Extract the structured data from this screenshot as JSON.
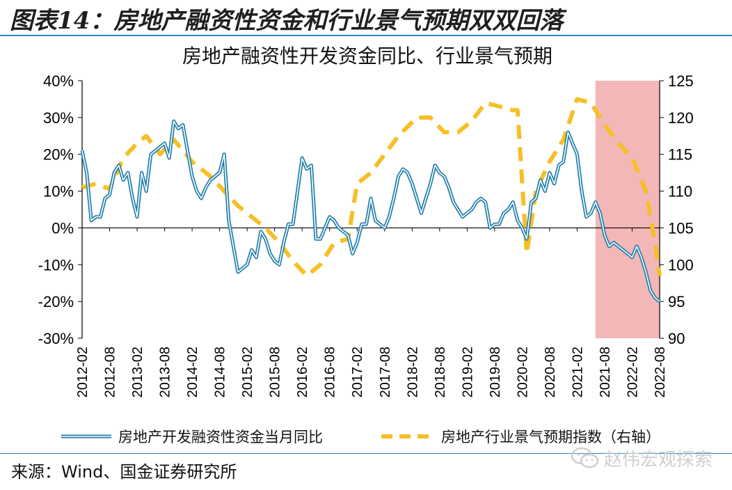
{
  "header": {
    "title": "图表14：房地产融资性资金和行业景气预期双双回落"
  },
  "footer": {
    "source": "来源：Wind、国金证券研究所",
    "watermark": "赵伟宏观探索"
  },
  "colors": {
    "financing_line": "#1f7ea8",
    "financing_line_inner": "#ffffff",
    "expectation_line": "#f6bf26",
    "highlight": "#f4b7b7",
    "axis": "#000000"
  },
  "chart_data": {
    "type": "line",
    "title": "房地产融资性开发资金同比、行业景气预期",
    "left_axis": {
      "min": -30,
      "max": 40,
      "step": 10,
      "ticks": [
        "40%",
        "30%",
        "20%",
        "10%",
        "0%",
        "-10%",
        "-20%",
        "-30%"
      ]
    },
    "right_axis": {
      "min": 90,
      "max": 125,
      "step": 5,
      "ticks": [
        "125",
        "120",
        "115",
        "110",
        "105",
        "100",
        "95",
        "90"
      ]
    },
    "x_ticks": [
      "2012-02",
      "2012-08",
      "2013-02",
      "2013-08",
      "2014-02",
      "2014-08",
      "2015-02",
      "2015-08",
      "2016-02",
      "2016-08",
      "2017-02",
      "2017-08",
      "2018-02",
      "2018-08",
      "2019-02",
      "2019-08",
      "2020-02",
      "2020-08",
      "2021-02",
      "2021-08",
      "2022-02",
      "2022-08"
    ],
    "highlight_range": [
      "2021-06",
      "2022-08"
    ],
    "series": [
      {
        "name": "房地产开发融资性资金当月同比",
        "axis": "left",
        "style": "double-line",
        "points": [
          [
            "2012-02",
            21
          ],
          [
            "2012-03",
            15
          ],
          [
            "2012-04",
            2
          ],
          [
            "2012-05",
            3
          ],
          [
            "2012-06",
            3
          ],
          [
            "2012-07",
            8
          ],
          [
            "2012-08",
            9
          ],
          [
            "2012-09",
            15
          ],
          [
            "2012-10",
            17
          ],
          [
            "2012-11",
            13
          ],
          [
            "2012-12",
            15
          ],
          [
            "2013-01",
            8
          ],
          [
            "2013-02",
            3
          ],
          [
            "2013-03",
            15
          ],
          [
            "2013-04",
            10
          ],
          [
            "2013-05",
            20
          ],
          [
            "2013-06",
            21
          ],
          [
            "2013-07",
            22
          ],
          [
            "2013-08",
            23
          ],
          [
            "2013-09",
            19
          ],
          [
            "2013-10",
            29
          ],
          [
            "2013-11",
            27
          ],
          [
            "2013-12",
            28
          ],
          [
            "2014-01",
            21
          ],
          [
            "2014-02",
            14
          ],
          [
            "2014-03",
            10
          ],
          [
            "2014-04",
            8
          ],
          [
            "2014-05",
            11
          ],
          [
            "2014-06",
            13
          ],
          [
            "2014-07",
            14
          ],
          [
            "2014-08",
            15
          ],
          [
            "2014-09",
            20
          ],
          [
            "2014-10",
            2
          ],
          [
            "2014-11",
            -5
          ],
          [
            "2014-12",
            -12
          ],
          [
            "2015-01",
            -11
          ],
          [
            "2015-02",
            -10
          ],
          [
            "2015-03",
            -6
          ],
          [
            "2015-04",
            -8
          ],
          [
            "2015-05",
            -1
          ],
          [
            "2015-06",
            -3
          ],
          [
            "2015-07",
            -7
          ],
          [
            "2015-08",
            -9
          ],
          [
            "2015-09",
            -10
          ],
          [
            "2015-10",
            -4
          ],
          [
            "2015-11",
            1
          ],
          [
            "2015-12",
            1
          ],
          [
            "2016-01",
            10
          ],
          [
            "2016-02",
            19
          ],
          [
            "2016-03",
            16
          ],
          [
            "2016-04",
            17
          ],
          [
            "2016-05",
            -3
          ],
          [
            "2016-06",
            -3
          ],
          [
            "2016-07",
            0
          ],
          [
            "2016-08",
            3
          ],
          [
            "2016-09",
            2
          ],
          [
            "2016-10",
            0
          ],
          [
            "2016-11",
            -1
          ],
          [
            "2016-12",
            -2
          ],
          [
            "2017-01",
            -7
          ],
          [
            "2017-02",
            -4
          ],
          [
            "2017-03",
            1
          ],
          [
            "2017-04",
            1
          ],
          [
            "2017-05",
            8
          ],
          [
            "2017-06",
            2
          ],
          [
            "2017-07",
            1
          ],
          [
            "2017-08",
            0
          ],
          [
            "2017-09",
            3
          ],
          [
            "2017-10",
            8
          ],
          [
            "2017-11",
            14
          ],
          [
            "2017-12",
            16
          ],
          [
            "2018-01",
            15
          ],
          [
            "2018-02",
            12
          ],
          [
            "2018-03",
            8
          ],
          [
            "2018-04",
            4
          ],
          [
            "2018-05",
            8
          ],
          [
            "2018-06",
            12
          ],
          [
            "2018-07",
            17
          ],
          [
            "2018-08",
            15
          ],
          [
            "2018-09",
            14
          ],
          [
            "2018-10",
            11
          ],
          [
            "2018-11",
            7
          ],
          [
            "2018-12",
            5
          ],
          [
            "2019-01",
            3
          ],
          [
            "2019-02",
            4
          ],
          [
            "2019-03",
            5
          ],
          [
            "2019-04",
            7
          ],
          [
            "2019-05",
            8
          ],
          [
            "2019-06",
            7
          ],
          [
            "2019-07",
            0
          ],
          [
            "2019-08",
            1
          ],
          [
            "2019-09",
            1
          ],
          [
            "2019-10",
            4
          ],
          [
            "2019-11",
            5
          ],
          [
            "2019-12",
            7
          ],
          [
            "2020-01",
            2
          ],
          [
            "2020-02",
            0
          ],
          [
            "2020-03",
            -3
          ],
          [
            "2020-04",
            7
          ],
          [
            "2020-05",
            8
          ],
          [
            "2020-06",
            13
          ],
          [
            "2020-07",
            10
          ],
          [
            "2020-08",
            15
          ],
          [
            "2020-09",
            12
          ],
          [
            "2020-10",
            17
          ],
          [
            "2020-11",
            18
          ],
          [
            "2020-12",
            26
          ],
          [
            "2021-01",
            23
          ],
          [
            "2021-02",
            20
          ],
          [
            "2021-03",
            10
          ],
          [
            "2021-04",
            3
          ],
          [
            "2021-05",
            4
          ],
          [
            "2021-06",
            7
          ],
          [
            "2021-07",
            4
          ],
          [
            "2021-08",
            -2
          ],
          [
            "2021-09",
            -5
          ],
          [
            "2021-10",
            -4
          ],
          [
            "2021-11",
            -5
          ],
          [
            "2021-12",
            -6
          ],
          [
            "2022-01",
            -7
          ],
          [
            "2022-02",
            -8
          ],
          [
            "2022-03",
            -5
          ],
          [
            "2022-04",
            -8
          ],
          [
            "2022-05",
            -12
          ],
          [
            "2022-06",
            -17
          ],
          [
            "2022-07",
            -19
          ],
          [
            "2022-08",
            -20
          ]
        ]
      },
      {
        "name": "房地产行业景气预期指数（右轴）",
        "axis": "right",
        "style": "dashed",
        "points": [
          [
            "2012-02",
            110.5
          ],
          [
            "2012-05",
            111
          ],
          [
            "2012-08",
            110.3
          ],
          [
            "2012-11",
            114.5
          ],
          [
            "2013-02",
            116.5
          ],
          [
            "2013-04",
            117.5
          ],
          [
            "2013-07",
            115
          ],
          [
            "2013-10",
            117
          ],
          [
            "2014-02",
            114
          ],
          [
            "2014-06",
            112
          ],
          [
            "2014-09",
            110
          ],
          [
            "2014-12",
            108
          ],
          [
            "2015-03",
            106.5
          ],
          [
            "2015-06",
            105
          ],
          [
            "2015-09",
            103
          ],
          [
            "2015-12",
            100.5
          ],
          [
            "2016-03",
            98.5
          ],
          [
            "2016-06",
            100
          ],
          [
            "2016-09",
            103
          ],
          [
            "2016-12",
            103.5
          ],
          [
            "2017-02",
            111
          ],
          [
            "2017-05",
            112.5
          ],
          [
            "2017-08",
            115
          ],
          [
            "2017-11",
            117.5
          ],
          [
            "2018-03",
            120
          ],
          [
            "2018-06",
            120
          ],
          [
            "2018-09",
            118
          ],
          [
            "2018-12",
            118
          ],
          [
            "2019-03",
            119.5
          ],
          [
            "2019-06",
            122
          ],
          [
            "2019-09",
            121.5
          ],
          [
            "2019-12",
            121
          ],
          [
            "2020-01",
            121
          ],
          [
            "2020-03",
            101.5
          ],
          [
            "2020-05",
            110
          ],
          [
            "2020-08",
            114
          ],
          [
            "2020-11",
            117
          ],
          [
            "2021-02",
            122.5
          ],
          [
            "2021-05",
            122
          ],
          [
            "2021-08",
            119
          ],
          [
            "2021-11",
            116.5
          ],
          [
            "2022-02",
            114.5
          ],
          [
            "2022-05",
            110
          ],
          [
            "2022-07",
            103
          ],
          [
            "2022-08",
            98.5
          ]
        ]
      }
    ]
  }
}
